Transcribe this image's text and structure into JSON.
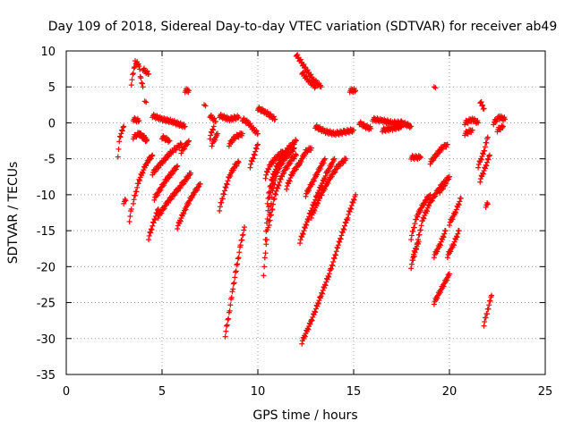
{
  "chart_data": {
    "type": "scatter",
    "title": "Day 109 of 2018, Sidereal Day-to-day VTEC variation (SDTVAR) for receiver ab49",
    "xlabel": "GPS time / hours",
    "ylabel": "SDTVAR / TECUs",
    "xlim": [
      0,
      25
    ],
    "ylim": [
      -35,
      10
    ],
    "x_ticks": [
      0,
      5,
      10,
      15,
      20,
      25
    ],
    "y_ticks": [
      10,
      5,
      0,
      -5,
      -10,
      -15,
      -20,
      -25,
      -30,
      -35
    ],
    "grid": true,
    "marker": "+",
    "color": "#ff0000",
    "series": [
      {
        "name": "ab49",
        "tracks": [
          [
            [
              2.7,
              -4.5
            ],
            [
              2.8,
              -2.0
            ],
            [
              3.0,
              -0.5
            ]
          ],
          [
            [
              3.0,
              -11.0
            ],
            [
              3.1,
              -10.8
            ]
          ],
          [
            [
              3.3,
              -13.5
            ],
            [
              3.4,
              -12.0
            ]
          ],
          [
            [
              3.4,
              5.5
            ],
            [
              3.6,
              8.5
            ],
            [
              3.8,
              8.0
            ],
            [
              3.9,
              6.0
            ],
            [
              4.0,
              5.0
            ]
          ],
          [
            [
              3.5,
              0.5
            ],
            [
              3.8,
              0.3
            ]
          ],
          [
            [
              3.5,
              -2.0
            ],
            [
              3.8,
              -1.5
            ],
            [
              4.2,
              -2.3
            ]
          ],
          [
            [
              3.5,
              -11.0
            ],
            [
              3.8,
              -8.0
            ],
            [
              4.2,
              -5.5
            ],
            [
              4.5,
              -4.5
            ]
          ],
          [
            [
              3.8,
              -1.5
            ],
            [
              4.2,
              -2.5
            ]
          ],
          [
            [
              4.0,
              7.5
            ],
            [
              4.3,
              6.8
            ]
          ],
          [
            [
              4.1,
              3.0
            ]
          ],
          [
            [
              4.3,
              -16.0
            ],
            [
              4.6,
              -13.5
            ],
            [
              4.8,
              -12.0
            ]
          ],
          [
            [
              4.5,
              -7.0
            ],
            [
              5.0,
              -5.5
            ],
            [
              5.5,
              -4.0
            ],
            [
              6.0,
              -3.0
            ]
          ],
          [
            [
              4.6,
              -10.5
            ],
            [
              5.2,
              -8.0
            ],
            [
              5.8,
              -6.0
            ]
          ],
          [
            [
              4.5,
              1.0
            ],
            [
              5.0,
              0.5
            ],
            [
              5.5,
              0.2
            ],
            [
              6.2,
              -0.5
            ]
          ],
          [
            [
              4.8,
              -13.0
            ],
            [
              5.3,
              -11.0
            ],
            [
              5.9,
              -9.0
            ],
            [
              6.2,
              -8.0
            ]
          ],
          [
            [
              5.0,
              -2.0
            ],
            [
              5.4,
              -2.5
            ]
          ],
          [
            [
              5.8,
              -14.5
            ],
            [
              6.2,
              -12.0
            ],
            [
              6.6,
              -10.0
            ],
            [
              7.0,
              -8.5
            ]
          ],
          [
            [
              6.0,
              -4.0
            ],
            [
              6.4,
              -2.5
            ]
          ],
          [
            [
              6.2,
              4.5
            ],
            [
              6.4,
              4.5
            ]
          ],
          [
            [
              6.2,
              -8.0
            ],
            [
              6.5,
              -7.0
            ]
          ],
          [
            [
              7.2,
              2.5
            ]
          ],
          [
            [
              7.5,
              1.0
            ],
            [
              7.8,
              0.2
            ]
          ],
          [
            [
              7.5,
              -2.0
            ],
            [
              7.7,
              -0.5
            ]
          ],
          [
            [
              7.6,
              -3.0
            ],
            [
              7.9,
              -1.5
            ]
          ],
          [
            [
              8.0,
              1.0
            ],
            [
              8.5,
              0.5
            ],
            [
              9.0,
              0.8
            ]
          ],
          [
            [
              8.0,
              -12.0
            ],
            [
              8.2,
              -10.0
            ],
            [
              8.5,
              -7.5
            ],
            [
              8.8,
              -6.0
            ],
            [
              9.0,
              -5.5
            ]
          ],
          [
            [
              8.3,
              -29.5
            ],
            [
              8.5,
              -26.5
            ],
            [
              8.7,
              -23.0
            ],
            [
              8.9,
              -20.0
            ],
            [
              9.1,
              -17.0
            ],
            [
              9.3,
              -14.5
            ]
          ],
          [
            [
              8.5,
              -3.0
            ],
            [
              8.8,
              -2.0
            ],
            [
              9.2,
              -1.5
            ]
          ],
          [
            [
              9.2,
              0.5
            ],
            [
              9.5,
              0.0
            ],
            [
              9.8,
              -1.0
            ],
            [
              10.0,
              -1.5
            ]
          ],
          [
            [
              9.6,
              -6.0
            ],
            [
              9.8,
              -4.5
            ],
            [
              10.0,
              -3.0
            ]
          ],
          [
            [
              10.0,
              2.0
            ],
            [
              10.4,
              1.5
            ],
            [
              10.9,
              0.5
            ]
          ],
          [
            [
              10.3,
              -21.0
            ],
            [
              10.5,
              -15.0
            ],
            [
              10.8,
              -9.0
            ],
            [
              11.2,
              -5.0
            ],
            [
              11.6,
              -3.5
            ],
            [
              12.0,
              -2.5
            ]
          ],
          [
            [
              10.4,
              -16.0
            ],
            [
              10.6,
              -10.5
            ],
            [
              10.9,
              -7.0
            ],
            [
              11.4,
              -5.0
            ],
            [
              11.9,
              -3.5
            ]
          ],
          [
            [
              10.5,
              -11.0
            ],
            [
              10.7,
              -8.0
            ],
            [
              11.0,
              -6.0
            ],
            [
              11.5,
              -4.0
            ]
          ],
          [
            [
              10.6,
              -14.0
            ],
            [
              10.9,
              -10.0
            ],
            [
              11.3,
              -7.0
            ],
            [
              11.8,
              -5.0
            ],
            [
              12.0,
              -4.5
            ]
          ],
          [
            [
              10.4,
              -7.5
            ],
            [
              10.6,
              -6.0
            ],
            [
              10.9,
              -5.0
            ],
            [
              11.3,
              -4.0
            ]
          ],
          [
            [
              11.5,
              -9.0
            ],
            [
              11.8,
              -7.0
            ],
            [
              12.2,
              -5.5
            ],
            [
              12.5,
              -4.0
            ],
            [
              12.8,
              -3.5
            ]
          ],
          [
            [
              12.0,
              9.5
            ],
            [
              12.5,
              7.5
            ],
            [
              12.9,
              6.0
            ],
            [
              13.3,
              5.0
            ]
          ],
          [
            [
              12.3,
              7.0
            ],
            [
              12.6,
              6.0
            ],
            [
              13.0,
              5.0
            ]
          ],
          [
            [
              12.2,
              -16.5
            ],
            [
              12.6,
              -13.5
            ],
            [
              13.1,
              -10.0
            ],
            [
              13.6,
              -7.0
            ],
            [
              14.0,
              -5.0
            ]
          ],
          [
            [
              12.3,
              -30.5
            ],
            [
              12.8,
              -27.5
            ],
            [
              13.3,
              -24.0
            ],
            [
              13.8,
              -20.5
            ],
            [
              14.2,
              -17.0
            ],
            [
              14.7,
              -13.0
            ],
            [
              15.1,
              -10.0
            ]
          ],
          [
            [
              12.5,
              -10.0
            ],
            [
              12.9,
              -8.0
            ],
            [
              13.2,
              -6.5
            ],
            [
              13.5,
              -5.0
            ]
          ],
          [
            [
              12.8,
              -13.0
            ],
            [
              13.3,
              -10.0
            ],
            [
              13.8,
              -7.5
            ],
            [
              14.2,
              -6.0
            ],
            [
              14.6,
              -5.0
            ]
          ],
          [
            [
              13.0,
              -0.5
            ],
            [
              13.5,
              -1.2
            ],
            [
              14.0,
              -1.5
            ],
            [
              14.5,
              -1.3
            ],
            [
              15.0,
              -1.0
            ]
          ],
          [
            [
              14.8,
              4.5
            ],
            [
              15.1,
              4.5
            ]
          ],
          [
            [
              15.3,
              0.0
            ],
            [
              15.6,
              -0.5
            ],
            [
              15.9,
              -0.8
            ]
          ],
          [
            [
              16.0,
              0.5
            ],
            [
              16.5,
              0.3
            ],
            [
              17.0,
              0.0
            ],
            [
              17.5,
              0.0
            ],
            [
              18.0,
              -0.5
            ]
          ],
          [
            [
              16.5,
              -1.0
            ],
            [
              17.0,
              -0.8
            ],
            [
              17.5,
              -0.5
            ]
          ],
          [
            [
              18.0,
              -4.8
            ],
            [
              18.5,
              -4.8
            ]
          ],
          [
            [
              18.0,
              -20.0
            ],
            [
              18.3,
              -17.0
            ],
            [
              18.6,
              -13.5
            ],
            [
              19.0,
              -11.0
            ],
            [
              19.5,
              -9.0
            ],
            [
              20.0,
              -7.5
            ]
          ],
          [
            [
              18.0,
              -16.0
            ],
            [
              18.3,
              -13.0
            ],
            [
              18.7,
              -11.0
            ],
            [
              19.0,
              -10.0
            ]
          ],
          [
            [
              18.1,
              -18.5
            ],
            [
              18.4,
              -16.5
            ]
          ],
          [
            [
              19.0,
              -5.5
            ],
            [
              19.3,
              -4.5
            ],
            [
              19.6,
              -3.5
            ],
            [
              19.9,
              -3.0
            ]
          ],
          [
            [
              19.2,
              5.0
            ]
          ],
          [
            [
              19.2,
              -25.0
            ],
            [
              19.5,
              -23.5
            ],
            [
              19.8,
              -22.0
            ],
            [
              20.0,
              -21.0
            ]
          ],
          [
            [
              19.2,
              -18.5
            ],
            [
              19.5,
              -17.0
            ],
            [
              19.8,
              -15.0
            ]
          ],
          [
            [
              19.5,
              -9.5
            ],
            [
              19.8,
              -8.5
            ]
          ],
          [
            [
              19.9,
              -18.5
            ],
            [
              20.2,
              -17.0
            ],
            [
              20.5,
              -15.0
            ]
          ],
          [
            [
              20.0,
              -14.0
            ],
            [
              20.3,
              -12.5
            ],
            [
              20.6,
              -10.5
            ]
          ],
          [
            [
              20.8,
              0.0
            ],
            [
              21.2,
              0.5
            ],
            [
              21.5,
              0.0
            ]
          ],
          [
            [
              20.8,
              -1.5
            ],
            [
              21.2,
              -1.0
            ]
          ],
          [
            [
              21.5,
              -6.0
            ],
            [
              21.8,
              -4.0
            ],
            [
              22.0,
              -2.0
            ]
          ],
          [
            [
              21.6,
              3.0
            ],
            [
              21.8,
              2.0
            ]
          ],
          [
            [
              21.6,
              -8.0
            ],
            [
              21.9,
              -6.0
            ],
            [
              22.1,
              -4.5
            ]
          ],
          [
            [
              21.9,
              -11.5
            ],
            [
              22.0,
              -11.3
            ]
          ],
          [
            [
              21.8,
              -28.0
            ],
            [
              22.0,
              -26.0
            ],
            [
              22.2,
              -24.0
            ]
          ],
          [
            [
              22.3,
              0.0
            ],
            [
              22.6,
              0.8
            ],
            [
              22.9,
              0.5
            ]
          ],
          [
            [
              22.5,
              -1.0
            ],
            [
              22.8,
              -0.5
            ]
          ]
        ]
      }
    ]
  }
}
